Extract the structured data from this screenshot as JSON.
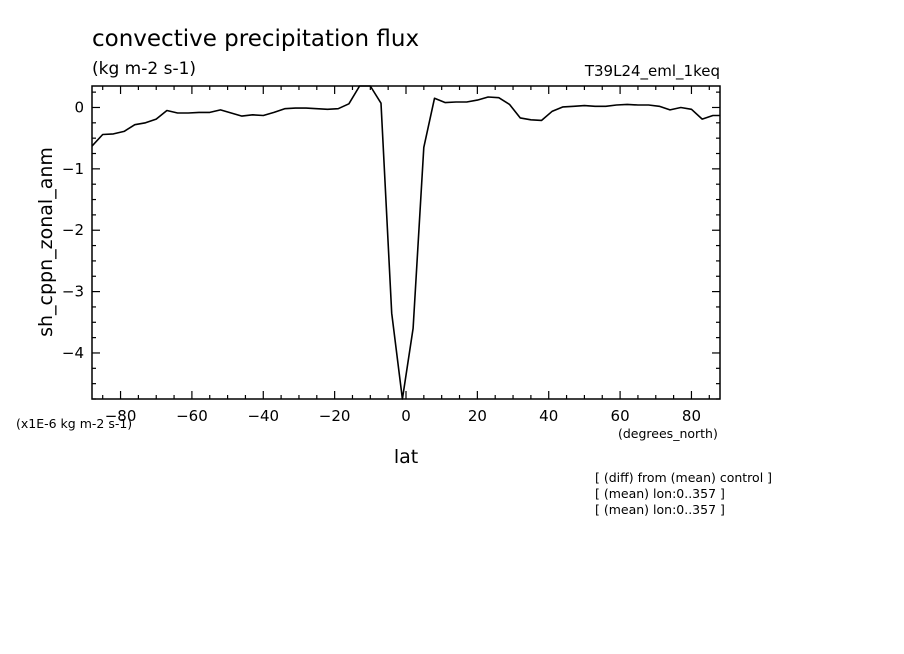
{
  "chart_data": {
    "type": "line",
    "title": "convective precipitation flux",
    "subtitle": "(kg m-2 s-1)",
    "experiment": "T39L24_eml_1keq",
    "xlabel": "lat",
    "xunits": "(degrees_north)",
    "ylabel": "sh_cppn_zonal_anm",
    "yscale_note": "(x1E-6 kg m-2 s-1)",
    "notes": [
      "[ (diff) from (mean) control ]",
      "[ (mean) lon:0..357 ]",
      "[ (mean) lon:0..357 ]"
    ],
    "xlim": [
      -88,
      88
    ],
    "ylim": [
      -4.75,
      0.35
    ],
    "xticks": [
      -80,
      -60,
      -40,
      -20,
      0,
      20,
      40,
      60,
      80
    ],
    "xtick_labels": [
      "−80",
      "−60",
      "−40",
      "−20",
      "0",
      "20",
      "40",
      "60",
      "80"
    ],
    "yticks": [
      0,
      -1,
      -2,
      -3,
      -4
    ],
    "ytick_labels": [
      "0",
      "−1",
      "−2",
      "−3",
      "−4"
    ],
    "grid": false,
    "series": [
      {
        "x": [
          -88,
          -85,
          -82,
          -79,
          -76,
          -73,
          -70,
          -67,
          -64,
          -61,
          -58,
          -55,
          -52,
          -49,
          -46,
          -43,
          -40,
          -37,
          -34,
          -31,
          -28,
          -25,
          -22,
          -19,
          -16,
          -13,
          -10,
          -7,
          -4,
          -1,
          2,
          5,
          8,
          11,
          14,
          17,
          20,
          23,
          26,
          29,
          32,
          35,
          38,
          41,
          44,
          47,
          50,
          53,
          56,
          59,
          62,
          65,
          68,
          71,
          74,
          77,
          80,
          83,
          86,
          88
        ],
        "y": [
          -0.63,
          -0.44,
          -0.43,
          -0.39,
          -0.28,
          -0.25,
          -0.19,
          -0.05,
          -0.09,
          -0.09,
          -0.08,
          -0.08,
          -0.04,
          -0.09,
          -0.14,
          -0.12,
          -0.13,
          -0.08,
          -0.02,
          -0.01,
          -0.01,
          -0.02,
          -0.03,
          -0.02,
          0.06,
          0.35,
          0.35,
          0.07,
          -3.35,
          -4.75,
          -3.6,
          -0.65,
          0.15,
          0.08,
          0.09,
          0.09,
          0.12,
          0.17,
          0.16,
          0.05,
          -0.17,
          -0.2,
          -0.21,
          -0.06,
          0.01,
          0.02,
          0.03,
          0.02,
          0.02,
          0.04,
          0.05,
          0.04,
          0.04,
          0.02,
          -0.04,
          0.0,
          -0.03,
          -0.19,
          -0.13,
          -0.13
        ]
      }
    ]
  }
}
